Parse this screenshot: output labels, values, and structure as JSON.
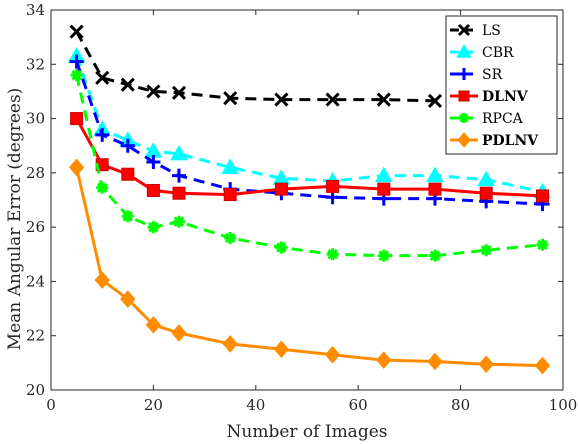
{
  "chart_data": {
    "type": "line",
    "xlabel": "Number of Images",
    "ylabel": "Mean Angular Error (degrees)",
    "xlim": [
      0,
      100
    ],
    "ylim": [
      20,
      34
    ],
    "x_ticks": [
      0,
      20,
      40,
      60,
      80,
      100
    ],
    "y_ticks": [
      20,
      22,
      24,
      26,
      28,
      30,
      32,
      34
    ],
    "grid": false,
    "legend_position": "top-right",
    "series": [
      {
        "name": "LS",
        "bold": false,
        "color": "#000000",
        "dash": "dashed",
        "marker": "x",
        "x": [
          5,
          10,
          15,
          20,
          25,
          35,
          45,
          55,
          65,
          75
        ],
        "y": [
          33.2,
          31.5,
          31.25,
          31.0,
          30.95,
          30.75,
          30.7,
          30.7,
          30.7,
          30.65
        ]
      },
      {
        "name": "CBR",
        "bold": false,
        "color": "#00ffff",
        "dash": "dashed",
        "marker": "triangle",
        "x": [
          5,
          10,
          15,
          20,
          25,
          35,
          45,
          55,
          65,
          75,
          85,
          96
        ],
        "y": [
          32.3,
          29.6,
          29.2,
          28.8,
          28.7,
          28.2,
          27.8,
          27.7,
          27.9,
          27.9,
          27.75,
          27.3
        ]
      },
      {
        "name": "SR",
        "bold": false,
        "color": "#0000ff",
        "dash": "dashed",
        "marker": "plus",
        "x": [
          5,
          10,
          15,
          20,
          25,
          35,
          45,
          55,
          65,
          75,
          85,
          96
        ],
        "y": [
          32.1,
          29.4,
          29.0,
          28.4,
          27.9,
          27.4,
          27.25,
          27.1,
          27.05,
          27.05,
          26.95,
          26.85
        ]
      },
      {
        "name": "DLNV",
        "bold": true,
        "color": "#ff0000",
        "dash": "solid",
        "marker": "square",
        "x": [
          5,
          10,
          15,
          20,
          25,
          35,
          45,
          55,
          65,
          75,
          85,
          96
        ],
        "y": [
          30.0,
          28.3,
          27.95,
          27.35,
          27.25,
          27.2,
          27.4,
          27.5,
          27.4,
          27.4,
          27.25,
          27.15
        ]
      },
      {
        "name": "RPCA",
        "bold": false,
        "color": "#00ff00",
        "dash": "dashed",
        "marker": "asterisk",
        "x": [
          5,
          10,
          15,
          20,
          25,
          35,
          45,
          55,
          65,
          75,
          85,
          96
        ],
        "y": [
          31.6,
          27.45,
          26.4,
          26.0,
          26.2,
          25.6,
          25.25,
          25.0,
          24.95,
          24.95,
          25.15,
          25.35
        ]
      },
      {
        "name": "PDLNV",
        "bold": true,
        "color": "#ff8c00",
        "dash": "solid",
        "marker": "diamond",
        "x": [
          5,
          10,
          15,
          20,
          25,
          35,
          45,
          55,
          65,
          75,
          85,
          96
        ],
        "y": [
          28.2,
          24.05,
          23.35,
          22.4,
          22.1,
          21.7,
          21.5,
          21.3,
          21.1,
          21.05,
          20.95,
          20.9
        ]
      }
    ]
  }
}
